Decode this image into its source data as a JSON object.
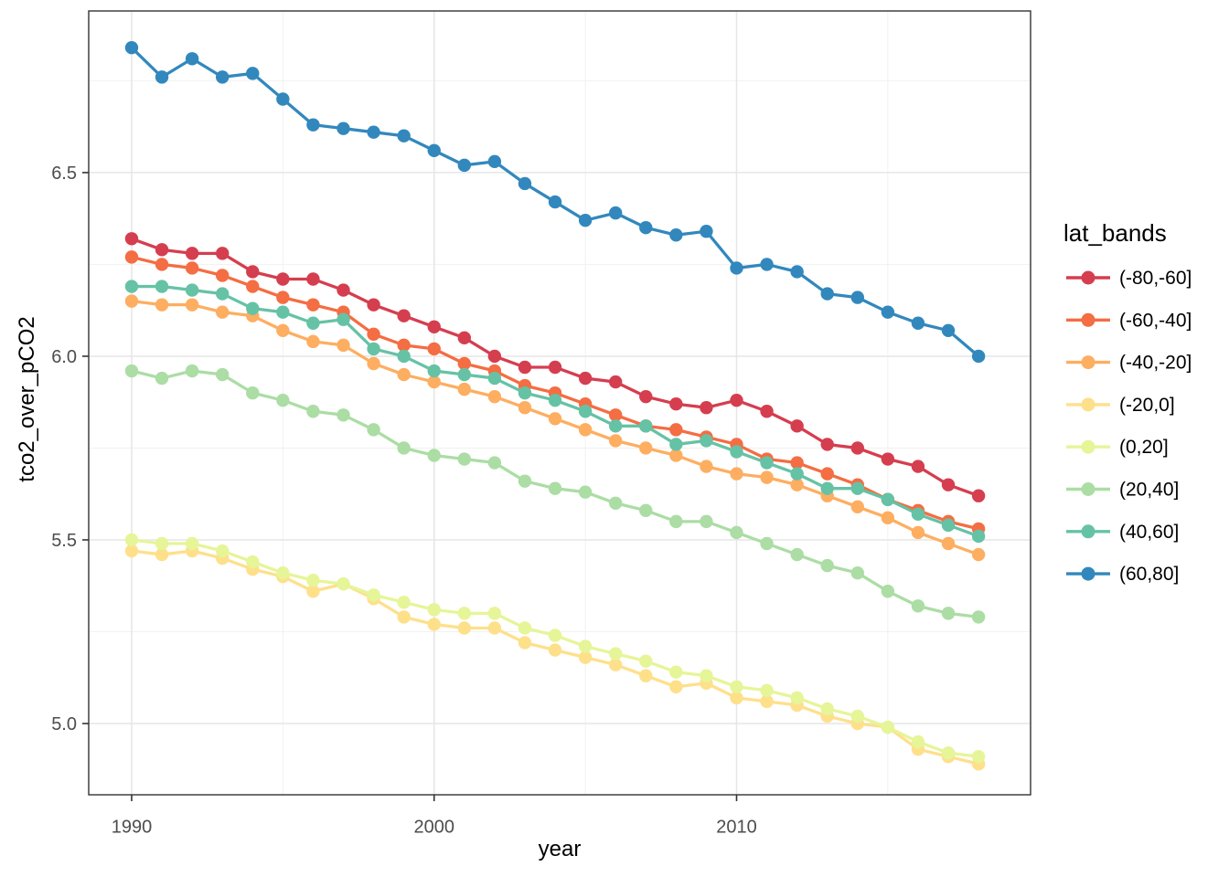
{
  "chart_data": {
    "type": "line",
    "title": "",
    "xlabel": "year",
    "ylabel": "tco2_over_pCO2",
    "legend_title": "lat_bands",
    "legend_position": "right",
    "grid": true,
    "panel_border_color": "#333333",
    "major_grid_color": "#e6e6e6",
    "minor_grid_color": "#f1f1f1",
    "tick_label_color": "#4d4d4d",
    "x_major_ticks": [
      1990,
      2000,
      2010
    ],
    "x_tick_labels": [
      "1990",
      "2000",
      "2010"
    ],
    "x_minor_gridlines": [
      1995,
      2005,
      2015
    ],
    "y_major_ticks": [
      5.0,
      5.5,
      6.0,
      6.5
    ],
    "y_tick_labels": [
      "5.0",
      "5.5",
      "6.0",
      "6.5"
    ],
    "y_minor_gridlines": [
      5.25,
      5.75,
      6.25,
      6.75
    ],
    "xlim": [
      1988.58,
      2019.72
    ],
    "ylim": [
      4.806,
      6.94
    ],
    "years": [
      1990,
      1991,
      1992,
      1993,
      1994,
      1995,
      1996,
      1997,
      1998,
      1999,
      2000,
      2001,
      2002,
      2003,
      2004,
      2005,
      2006,
      2007,
      2008,
      2009,
      2010,
      2011,
      2012,
      2013,
      2014,
      2015,
      2016,
      2017,
      2018
    ],
    "series": [
      {
        "name": "(-80,-60]",
        "color": "#d53e4f",
        "values": [
          6.32,
          6.29,
          6.28,
          6.28,
          6.23,
          6.21,
          6.21,
          6.18,
          6.14,
          6.11,
          6.08,
          6.05,
          6.0,
          5.97,
          5.97,
          5.94,
          5.93,
          5.89,
          5.87,
          5.86,
          5.88,
          5.85,
          5.81,
          5.76,
          5.75,
          5.72,
          5.7,
          5.65,
          5.62
        ]
      },
      {
        "name": "(-60,-40]",
        "color": "#f46d43",
        "values": [
          6.27,
          6.25,
          6.24,
          6.22,
          6.19,
          6.16,
          6.14,
          6.12,
          6.06,
          6.03,
          6.02,
          5.98,
          5.96,
          5.92,
          5.9,
          5.87,
          5.84,
          5.81,
          5.8,
          5.78,
          5.76,
          5.72,
          5.71,
          5.68,
          5.65,
          5.61,
          5.58,
          5.55,
          5.53
        ]
      },
      {
        "name": "(-40,-20]",
        "color": "#fdae61",
        "values": [
          6.15,
          6.14,
          6.14,
          6.12,
          6.11,
          6.07,
          6.04,
          6.03,
          5.98,
          5.95,
          5.93,
          5.91,
          5.89,
          5.86,
          5.83,
          5.8,
          5.77,
          5.75,
          5.73,
          5.7,
          5.68,
          5.67,
          5.65,
          5.62,
          5.59,
          5.56,
          5.52,
          5.49,
          5.46
        ]
      },
      {
        "name": "(-20,0]",
        "color": "#fee08b",
        "values": [
          5.47,
          5.46,
          5.47,
          5.45,
          5.42,
          5.4,
          5.36,
          5.38,
          5.34,
          5.29,
          5.27,
          5.26,
          5.26,
          5.22,
          5.2,
          5.18,
          5.16,
          5.13,
          5.1,
          5.11,
          5.07,
          5.06,
          5.05,
          5.02,
          5.0,
          4.99,
          4.93,
          4.91,
          4.89
        ]
      },
      {
        "name": "(0,20]",
        "color": "#e6f598",
        "values": [
          5.5,
          5.49,
          5.49,
          5.47,
          5.44,
          5.41,
          5.39,
          5.38,
          5.35,
          5.33,
          5.31,
          5.3,
          5.3,
          5.26,
          5.24,
          5.21,
          5.19,
          5.17,
          5.14,
          5.13,
          5.1,
          5.09,
          5.07,
          5.04,
          5.02,
          4.99,
          4.95,
          4.92,
          4.91
        ]
      },
      {
        "name": "(20,40]",
        "color": "#abdda4",
        "values": [
          5.96,
          5.94,
          5.96,
          5.95,
          5.9,
          5.88,
          5.85,
          5.84,
          5.8,
          5.75,
          5.73,
          5.72,
          5.71,
          5.66,
          5.64,
          5.63,
          5.6,
          5.58,
          5.55,
          5.55,
          5.52,
          5.49,
          5.46,
          5.43,
          5.41,
          5.36,
          5.32,
          5.3,
          5.29
        ]
      },
      {
        "name": "(40,60]",
        "color": "#66c2a5",
        "values": [
          6.19,
          6.19,
          6.18,
          6.17,
          6.13,
          6.12,
          6.09,
          6.1,
          6.02,
          6.0,
          5.96,
          5.95,
          5.94,
          5.9,
          5.88,
          5.85,
          5.81,
          5.81,
          5.76,
          5.77,
          5.74,
          5.71,
          5.68,
          5.64,
          5.64,
          5.61,
          5.57,
          5.54,
          5.51
        ]
      },
      {
        "name": "(60,80]",
        "color": "#3288bd",
        "values": [
          6.84,
          6.76,
          6.81,
          6.76,
          6.77,
          6.7,
          6.63,
          6.62,
          6.61,
          6.6,
          6.56,
          6.52,
          6.53,
          6.47,
          6.42,
          6.37,
          6.39,
          6.35,
          6.33,
          6.34,
          6.24,
          6.25,
          6.23,
          6.17,
          6.16,
          6.12,
          6.09,
          6.07,
          6.0
        ]
      }
    ]
  }
}
